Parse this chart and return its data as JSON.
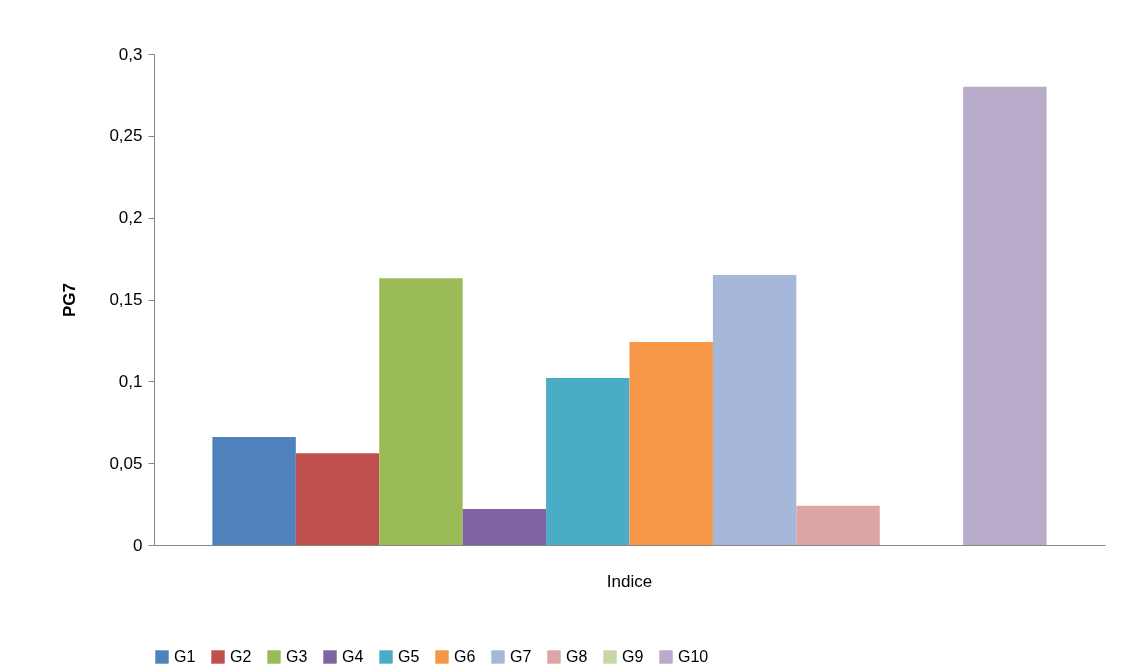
{
  "chart_data": {
    "type": "bar",
    "ylabel": "PG7",
    "categories": [
      "Indice"
    ],
    "series": [
      {
        "name": "G1",
        "color": "#4f81bd",
        "values": [
          0.066
        ]
      },
      {
        "name": "G2",
        "color": "#c0504d",
        "values": [
          0.056
        ]
      },
      {
        "name": "G3",
        "color": "#9bbb59",
        "values": [
          0.163
        ]
      },
      {
        "name": "G4",
        "color": "#8064a2",
        "values": [
          0.022
        ]
      },
      {
        "name": "G5",
        "color": "#4bacc6",
        "values": [
          0.102
        ]
      },
      {
        "name": "G6",
        "color": "#f79646",
        "values": [
          0.124
        ]
      },
      {
        "name": "G7",
        "color": "#a5b8da",
        "values": [
          0.165
        ]
      },
      {
        "name": "G8",
        "color": "#dca6a4",
        "values": [
          0.024
        ]
      },
      {
        "name": "G9",
        "color": "#c4d7a4",
        "values": [
          0
        ]
      },
      {
        "name": "G10",
        "color": "#b9abca",
        "values": [
          0.28
        ]
      }
    ],
    "ylim": [
      0,
      0.3
    ],
    "yticks": [
      0,
      {
        "value": 0.05,
        "label": "0,05"
      },
      {
        "value": 0.1,
        "label": "0,1"
      },
      {
        "value": 0.15,
        "label": "0,15"
      },
      {
        "value": 0.2,
        "label": "0,2"
      },
      {
        "value": 0.25,
        "label": "0,25"
      },
      {
        "value": 0.3,
        "label": "0,3"
      }
    ],
    "grid": false,
    "legend": "bottom"
  }
}
